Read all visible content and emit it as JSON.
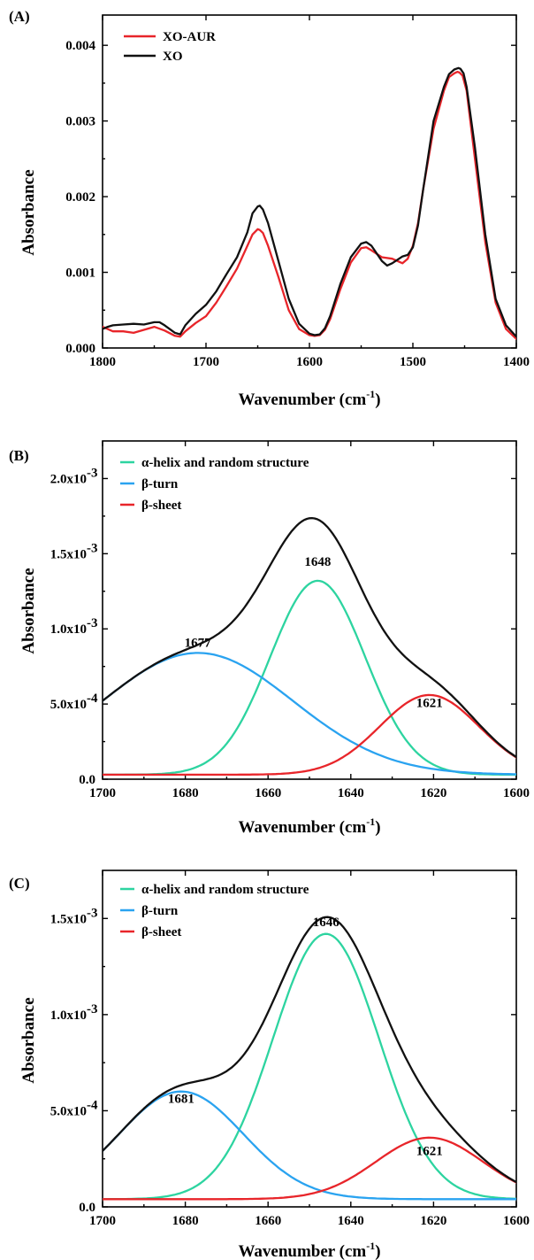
{
  "chart_data": [
    {
      "panel": "(A)",
      "type": "line",
      "xlabel": "Wavenumber (cm",
      "xlabel_sup": "-1",
      "xlabel_end": ")",
      "ylabel": "Absorbance",
      "xlim": [
        1800,
        1400
      ],
      "ylim": [
        0,
        0.0044
      ],
      "xticks": [
        1800,
        1700,
        1600,
        1500,
        1400
      ],
      "xtick_labels": [
        "1800",
        "1700",
        "1600",
        "1500",
        "1400"
      ],
      "yticks": [
        0,
        0.001,
        0.002,
        0.003,
        0.004
      ],
      "ytick_labels": [
        "0.000",
        "0.001",
        "0.002",
        "0.003",
        "0.004"
      ],
      "legend_position": "top-left",
      "series": [
        {
          "name": "XO-AUR",
          "color": "#e8252a",
          "x": [
            1800,
            1795,
            1790,
            1780,
            1770,
            1760,
            1750,
            1740,
            1730,
            1725,
            1720,
            1710,
            1700,
            1690,
            1680,
            1670,
            1660,
            1655,
            1650,
            1648,
            1645,
            1640,
            1630,
            1620,
            1610,
            1600,
            1595,
            1590,
            1585,
            1580,
            1570,
            1560,
            1550,
            1545,
            1540,
            1530,
            1520,
            1510,
            1505,
            1500,
            1495,
            1490,
            1480,
            1470,
            1465,
            1460,
            1457,
            1455,
            1452,
            1448,
            1440,
            1430,
            1420,
            1410,
            1400
          ],
          "y": [
            0.00028,
            0.00025,
            0.00022,
            0.00022,
            0.0002,
            0.00024,
            0.00028,
            0.00023,
            0.00016,
            0.00015,
            0.00022,
            0.00033,
            0.00042,
            0.0006,
            0.00082,
            0.00105,
            0.00135,
            0.0015,
            0.00157,
            0.00156,
            0.00152,
            0.00135,
            0.00094,
            0.0005,
            0.00025,
            0.00017,
            0.00016,
            0.00017,
            0.00024,
            0.00038,
            0.00078,
            0.00113,
            0.00132,
            0.00133,
            0.00129,
            0.0012,
            0.00118,
            0.00112,
            0.00118,
            0.00135,
            0.00165,
            0.0021,
            0.0029,
            0.0034,
            0.00358,
            0.00363,
            0.00365,
            0.00364,
            0.0036,
            0.0034,
            0.0025,
            0.0014,
            0.0006,
            0.00025,
            0.00012
          ]
        },
        {
          "name": "XO",
          "color": "#111111",
          "x": [
            1800,
            1795,
            1790,
            1780,
            1770,
            1760,
            1750,
            1745,
            1740,
            1730,
            1725,
            1720,
            1710,
            1700,
            1690,
            1680,
            1670,
            1660,
            1655,
            1650,
            1648,
            1645,
            1640,
            1630,
            1620,
            1610,
            1600,
            1595,
            1590,
            1585,
            1580,
            1570,
            1560,
            1550,
            1545,
            1540,
            1530,
            1525,
            1520,
            1510,
            1505,
            1500,
            1495,
            1490,
            1480,
            1470,
            1465,
            1460,
            1456,
            1454,
            1451,
            1448,
            1440,
            1430,
            1420,
            1410,
            1400
          ],
          "y": [
            0.00025,
            0.00028,
            0.0003,
            0.00031,
            0.00032,
            0.00031,
            0.00034,
            0.00034,
            0.0003,
            0.0002,
            0.00018,
            0.0003,
            0.00045,
            0.00057,
            0.00075,
            0.00098,
            0.0012,
            0.00153,
            0.00178,
            0.00187,
            0.00188,
            0.00183,
            0.00165,
            0.00115,
            0.00065,
            0.00032,
            0.00019,
            0.00017,
            0.00018,
            0.00026,
            0.00042,
            0.00085,
            0.0012,
            0.00138,
            0.0014,
            0.00135,
            0.00115,
            0.00109,
            0.00112,
            0.00121,
            0.00123,
            0.00133,
            0.00162,
            0.0021,
            0.003,
            0.00345,
            0.00362,
            0.00368,
            0.0037,
            0.00369,
            0.00363,
            0.00345,
            0.00265,
            0.0015,
            0.00065,
            0.0003,
            0.00015
          ]
        }
      ]
    },
    {
      "panel": "(B)",
      "type": "line",
      "xlabel": "Wavenumber (cm",
      "xlabel_sup": "-1",
      "xlabel_end": ")",
      "ylabel": "Absorbance",
      "xlim": [
        1700,
        1600
      ],
      "ylim": [
        0,
        0.00225
      ],
      "xticks": [
        1700,
        1680,
        1660,
        1640,
        1620,
        1600
      ],
      "xtick_labels": [
        "1700",
        "1680",
        "1660",
        "1640",
        "1620",
        "1600"
      ],
      "yticks": [
        0,
        0.0005,
        0.001,
        0.0015,
        0.002
      ],
      "ytick_labels": [
        "0.0",
        "5.0x10",
        "1.0x10",
        "1.5x10",
        "2.0x10"
      ],
      "ytick_exponents": [
        "",
        "-4",
        "-3",
        "-3",
        "-3"
      ],
      "legend_position": "top-left",
      "series": [
        {
          "name": "α-helix and random structure",
          "color": "#2dd4a0",
          "model": "gaussian",
          "center": 1648,
          "amp": 0.00129,
          "sigma": 11.5,
          "base": 3e-05
        },
        {
          "name": "β-turn",
          "color": "#2aa3f0",
          "model": "gaussian",
          "center": 1677,
          "amp": 0.00081,
          "sigma": 23,
          "base": 3e-05
        },
        {
          "name": "β-sheet",
          "color": "#e8252a",
          "model": "gaussian",
          "center": 1621,
          "amp": 0.00053,
          "sigma": 12,
          "base": 3e-05
        },
        {
          "name": "",
          "color": "#111111",
          "model": "sum"
        }
      ],
      "peak_labels": [
        {
          "text": "1648",
          "x": 1648,
          "y": 0.00142
        },
        {
          "text": "1677",
          "x": 1677,
          "y": 0.00088
        },
        {
          "text": "1621",
          "x": 1621,
          "y": 0.00048
        }
      ]
    },
    {
      "panel": "(C)",
      "type": "line",
      "xlabel": "Wavenumber (cm",
      "xlabel_sup": "-1",
      "xlabel_end": ")",
      "ylabel": "Absorbance",
      "xlim": [
        1700,
        1600
      ],
      "ylim": [
        0,
        0.00175
      ],
      "xticks": [
        1700,
        1680,
        1660,
        1640,
        1620,
        1600
      ],
      "xtick_labels": [
        "1700",
        "1680",
        "1660",
        "1640",
        "1620",
        "1600"
      ],
      "yticks": [
        0,
        0.0005,
        0.001,
        0.0015
      ],
      "ytick_labels": [
        "0.0",
        "5.0x10",
        "1.0x10",
        "1.5x10"
      ],
      "ytick_exponents": [
        "",
        "-4",
        "-3",
        "-3"
      ],
      "legend_position": "top-left",
      "series": [
        {
          "name": "α-helix and random structure",
          "color": "#2dd4a0",
          "model": "gaussian",
          "center": 1646,
          "amp": 0.00138,
          "sigma": 12.8,
          "base": 4e-05
        },
        {
          "name": "β-turn",
          "color": "#2aa3f0",
          "model": "gaussian",
          "center": 1681,
          "amp": 0.00056,
          "sigma": 15,
          "base": 4e-05
        },
        {
          "name": "β-sheet",
          "color": "#e8252a",
          "model": "gaussian",
          "center": 1621,
          "amp": 0.00032,
          "sigma": 13,
          "base": 4e-05
        },
        {
          "name": "",
          "color": "#111111",
          "model": "sum"
        }
      ],
      "peak_labels": [
        {
          "text": "1646",
          "x": 1646,
          "y": 0.00146
        },
        {
          "text": "1681",
          "x": 1681,
          "y": 0.00054
        },
        {
          "text": "1621",
          "x": 1621,
          "y": 0.00027
        }
      ]
    }
  ]
}
